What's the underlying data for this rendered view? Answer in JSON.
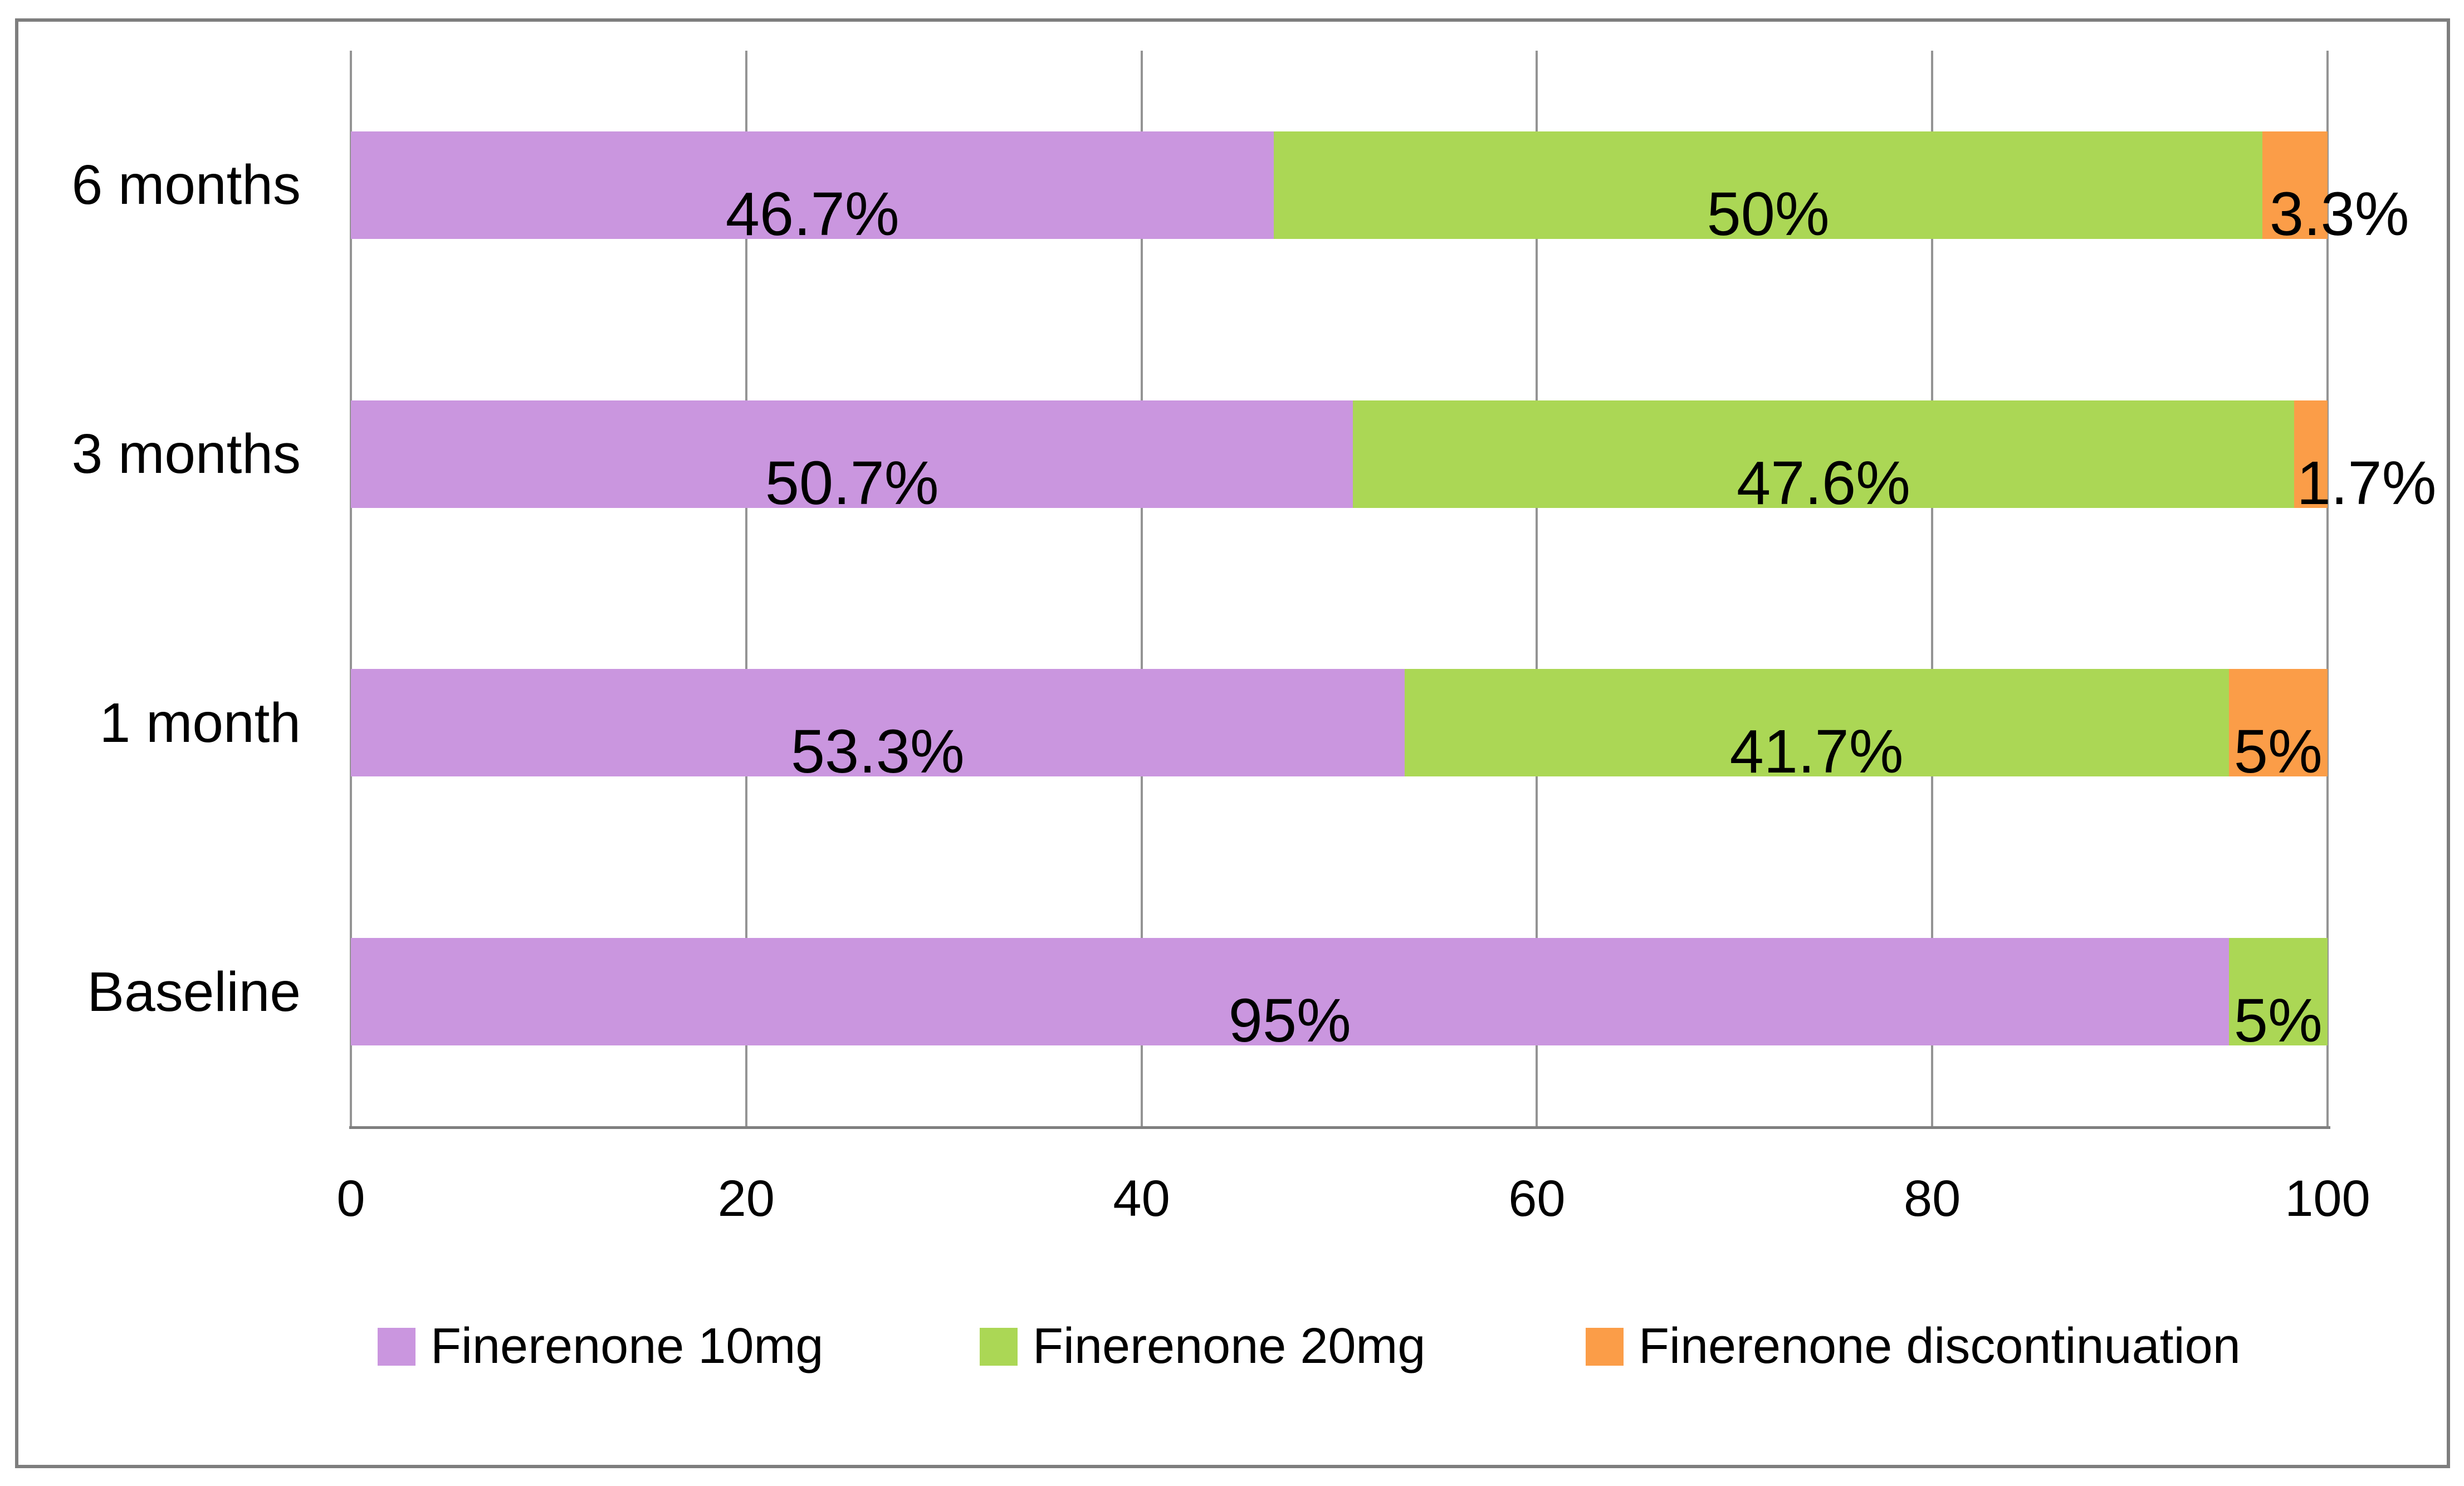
{
  "chart_data": {
    "type": "bar",
    "orientation": "horizontal-stacked",
    "title": "",
    "xlabel": "",
    "ylabel": "",
    "xlim": [
      0,
      100
    ],
    "x_ticks": [
      "0",
      "20",
      "40",
      "60",
      "80",
      "100"
    ],
    "grid": true,
    "legend_position": "bottom-center",
    "categories": [
      "6 months",
      "3 months",
      "1 month",
      "Baseline"
    ],
    "series": [
      {
        "name": "Finerenone 10mg",
        "color": "#CA96DF",
        "values": [
          46.7,
          50.7,
          53.3,
          95
        ]
      },
      {
        "name": "Finerenone 20mg",
        "color": "#ABD755",
        "values": [
          50,
          47.6,
          41.7,
          5
        ]
      },
      {
        "name": "Finerenone discontinuation",
        "color": "#FB9D48",
        "values": [
          3.3,
          1.7,
          5,
          0
        ]
      }
    ],
    "labels": [
      [
        "46.7%",
        "50%",
        "3.3%"
      ],
      [
        "50.7%",
        "47.6%",
        "1.7%"
      ],
      [
        "53.3%",
        "41.7%",
        "5%"
      ],
      [
        "95%",
        "5%",
        ""
      ]
    ],
    "colors": {
      "gridline": "#949494",
      "axis_line": "#7F7F7F",
      "figure_border": "#7E7E7E",
      "label_text": "#000000"
    }
  }
}
